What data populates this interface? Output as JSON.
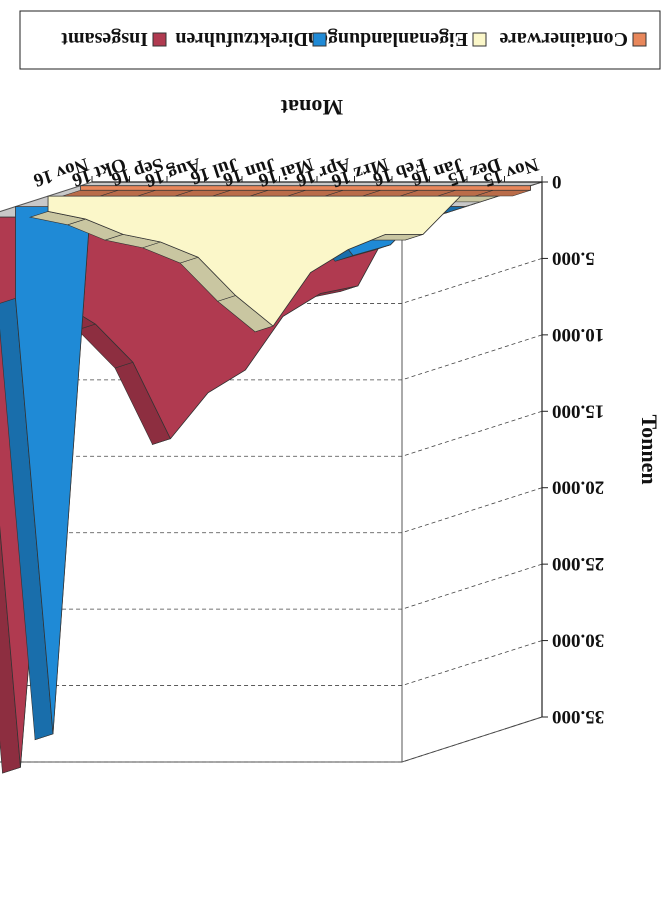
{
  "chart_data": {
    "type": "area",
    "view": "3d",
    "orientation": "rotated-180",
    "ylabel": "Tonnen",
    "xlabel": "Monat",
    "ylim": [
      0,
      35000
    ],
    "yticks": [
      "0",
      "5.000",
      "10.000",
      "15.000",
      "20.000",
      "25.000",
      "30.000",
      "35.000"
    ],
    "categories": [
      "Nov 15",
      "Dez 15",
      "Jan 16",
      "Feb 16",
      "Mrz 16",
      "Apr 16",
      "Mai 16",
      "Jun 16",
      "Jul 16",
      "Aug 16",
      "Sep 16",
      "Okt 16",
      "Nov 16"
    ],
    "grid": true,
    "legend_position": "right",
    "series": [
      {
        "name": "Containerware",
        "color": "#e8875b",
        "values": [
          300,
          300,
          300,
          300,
          300,
          300,
          300,
          300,
          300,
          300,
          300,
          300,
          300
        ]
      },
      {
        "name": "Eigenanlandungen",
        "color": "#fbf7c9",
        "values": [
          0,
          0,
          2500,
          2500,
          3500,
          5000,
          8500,
          6500,
          4000,
          3000,
          2500,
          1500,
          1000
        ]
      },
      {
        "name": "Direktzufuhren",
        "color": "#1f8ad6",
        "values": [
          0,
          0,
          2500,
          3200,
          0,
          0,
          0,
          0,
          0,
          0,
          0,
          34500,
          6000
        ]
      },
      {
        "name": "Insgesamt",
        "color": "#b03a50",
        "values": [
          0,
          0,
          4500,
          5000,
          6500,
          10000,
          11500,
          14500,
          9500,
          7000,
          5500,
          36000,
          7500
        ]
      }
    ]
  }
}
